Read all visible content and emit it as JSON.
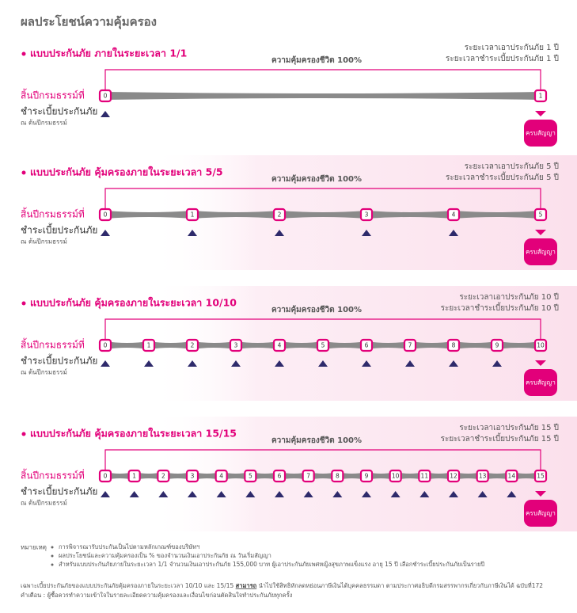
{
  "header": {
    "title": "ผลประโยชน์ความคุ้มครอง"
  },
  "sections": [
    {
      "title": "แบบประกันภัย ภายในระยะเวลา 1/1",
      "coverage_period": "ระยะเวลาเอาประกันภัย 1 ปี",
      "payment_period": "ระยะเวลาชำระเบี้ยประกันภัย 1 ปี",
      "coverage_label": "ความคุ้มครองชีวิต 100%",
      "year_end_label": "สิ้นปีกรมธรรม์ที่",
      "pay_label": "ชำระเบี้ยประกันภัย",
      "pay_sublabel": "ณ ต้นปีกรมธรรม์",
      "maturity_label": "ครบสัญญา",
      "years": [
        0,
        1
      ]
    },
    {
      "title": "แบบประกันภัย คุ้มครองภายในระยะเวลา 5/5",
      "coverage_period": "ระยะเวลาเอาประกันภัย 5 ปี",
      "payment_period": "ระยะเวลาชำระเบี้ยประกันภัย 5 ปี",
      "coverage_label": "ความคุ้มครองชีวิต 100%",
      "year_end_label": "สิ้นปีกรมธรรม์ที่",
      "pay_label": "ชำระเบี้ยประกันภัย",
      "pay_sublabel": "ณ ต้นปีกรมธรรม์",
      "maturity_label": "ครบสัญญา",
      "years": [
        0,
        1,
        2,
        3,
        4,
        5
      ]
    },
    {
      "title": "แบบประกันภัย คุ้มครองภายในระยะเวลา 10/10",
      "coverage_period": "ระยะเวลาเอาประกันภัย 10 ปี",
      "payment_period": "ระยะเวลาชำระเบี้ยประกันภัย 10 ปี",
      "coverage_label": "ความคุ้มครองชีวิต 100%",
      "year_end_label": "สิ้นปีกรมธรรม์ที่",
      "pay_label": "ชำระเบี้ยประกันภัย",
      "pay_sublabel": "ณ ต้นปีกรมธรรม์",
      "maturity_label": "ครบสัญญา",
      "years": [
        0,
        1,
        2,
        3,
        4,
        5,
        6,
        7,
        8,
        9,
        10
      ]
    },
    {
      "title": "แบบประกันภัย คุ้มครองภายในระยะเวลา 15/15",
      "coverage_period": "ระยะเวลาเอาประกันภัย 15 ปี",
      "payment_period": "ระยะเวลาชำระเบี้ยประกันภัย 15 ปี",
      "coverage_label": "ความคุ้มครองชีวิต 100%",
      "year_end_label": "สิ้นปีกรมธรรม์ที่",
      "pay_label": "ชำระเบี้ยประกันภัย",
      "pay_sublabel": "ณ ต้นปีกรมธรรม์",
      "maturity_label": "ครบสัญญา",
      "years": [
        0,
        1,
        2,
        3,
        4,
        5,
        6,
        7,
        8,
        9,
        10,
        11,
        12,
        13,
        14,
        15
      ]
    }
  ],
  "notes": {
    "heading": "หมายเหตุ",
    "items": [
      "การพิจารณารับประกันเป็นไปตามหลักเกณฑ์ของบริษัทฯ",
      "ผลประโยชน์และความคุ้มครองเป็น % ของจำนวนเงินเอาประกันภัย ณ วันเริ่มสัญญา",
      "สำหรับแบบประกันภัยภายในระยะเวลา 1/1 จำนวนเงินเอาประกันภัย 155,000 บาท ผู้เอาประกันภัยเพศหญิงสุขภาพแข็งแรง อายุ 15 ปี เลือกชำระเบี้ยประกันภัยเป็นรายปี"
    ]
  },
  "footer": {
    "tax_before": "เฉพาะเบี้ยประกันภัยของแบบประกันภัยคุ้มครองภายในระยะเวลา 10/10 และ 15/15 ",
    "tax_emphasis": "สามารถ",
    "tax_after": " นำไปใช้สิทธิหักลดหย่อนภาษีเงินได้บุคคลธรรมดา ตามประกาศอธิบดีกรมสรรพากรเกี่ยวกับภาษีเงินได้ ฉบับที่172",
    "warning": "คำเตือน : ผู้ซื้อควรทำความเข้าใจในรายละเอียดความคุ้มครองและเงื่อนไขก่อนตัดสินใจทำประกันภัยทุกครั้ง"
  }
}
